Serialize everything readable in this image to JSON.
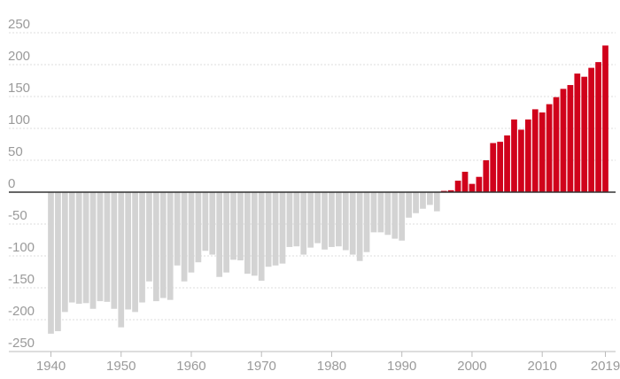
{
  "chart_data": {
    "type": "bar",
    "title": "",
    "xlabel": "",
    "ylabel": "",
    "ylim": [
      -265,
      265
    ],
    "xlim": [
      1939,
      2020
    ],
    "grid": true,
    "legend": "none",
    "colors": {
      "positive": "#d0021b",
      "negative": "#d3d3d3",
      "zero_line": "#333333",
      "grid": "#dddddd",
      "tick_label": "#9a9a9a"
    },
    "y_ticks": [
      250,
      200,
      150,
      100,
      50,
      0,
      -50,
      -100,
      -150,
      -200,
      -250
    ],
    "x_ticks": [
      1940,
      1950,
      1960,
      1970,
      1980,
      1990,
      2000,
      2010,
      2019
    ],
    "categories": [
      1940,
      1941,
      1942,
      1943,
      1944,
      1945,
      1946,
      1947,
      1948,
      1949,
      1950,
      1951,
      1952,
      1953,
      1954,
      1955,
      1956,
      1957,
      1958,
      1959,
      1960,
      1961,
      1962,
      1963,
      1964,
      1965,
      1966,
      1967,
      1968,
      1969,
      1970,
      1971,
      1972,
      1973,
      1974,
      1975,
      1976,
      1977,
      1978,
      1979,
      1980,
      1981,
      1982,
      1983,
      1984,
      1985,
      1986,
      1987,
      1988,
      1989,
      1990,
      1991,
      1992,
      1993,
      1994,
      1995,
      1996,
      1997,
      1998,
      1999,
      2000,
      2001,
      2002,
      2003,
      2004,
      2005,
      2006,
      2007,
      2008,
      2009,
      2010,
      2011,
      2012,
      2013,
      2014,
      2015,
      2016,
      2017,
      2018,
      2019
    ],
    "values": [
      -222,
      -218,
      -188,
      -173,
      -175,
      -174,
      -183,
      -171,
      -172,
      -183,
      -212,
      -184,
      -188,
      -173,
      -140,
      -171,
      -166,
      -169,
      -115,
      -140,
      -126,
      -110,
      -92,
      -98,
      -133,
      -126,
      -106,
      -107,
      -128,
      -131,
      -139,
      -117,
      -115,
      -112,
      -86,
      -85,
      -98,
      -87,
      -80,
      -90,
      -86,
      -85,
      -91,
      -98,
      -108,
      -94,
      -63,
      -63,
      -67,
      -73,
      -76,
      -40,
      -33,
      -26,
      -20,
      -30,
      2,
      3,
      18,
      32,
      13,
      24,
      50,
      77,
      79,
      89,
      114,
      98,
      114,
      130,
      125,
      138,
      149,
      162,
      168,
      186,
      181,
      195,
      204,
      230
    ]
  }
}
